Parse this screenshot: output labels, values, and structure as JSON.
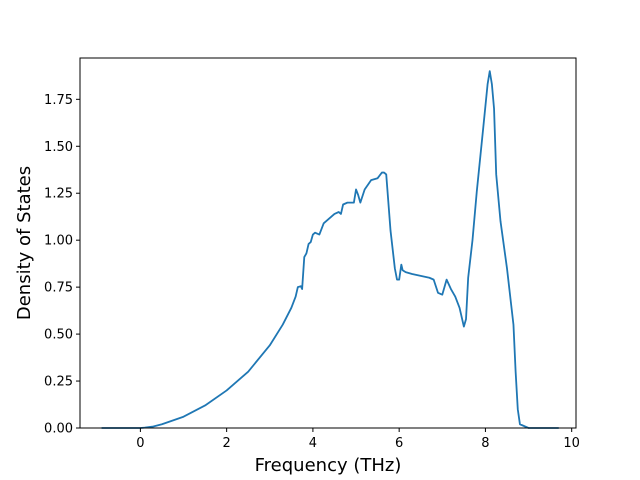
{
  "chart_data": {
    "type": "line",
    "title": "",
    "xlabel": "Frequency (THz)",
    "ylabel": "Density of States",
    "xlim": [
      -1.4,
      10.1
    ],
    "ylim": [
      0,
      1.97
    ],
    "xticks": [
      0,
      2,
      4,
      6,
      8,
      10
    ],
    "xtick_labels": [
      "0",
      "2",
      "4",
      "6",
      "8",
      "10"
    ],
    "yticks": [
      0,
      0.25,
      0.5,
      0.75,
      1.0,
      1.25,
      1.5,
      1.75
    ],
    "ytick_labels": [
      "0.00",
      "0.25",
      "0.50",
      "0.75",
      "1.00",
      "1.25",
      "1.50",
      "1.75"
    ],
    "grid": false,
    "line_color": "#1f77b4",
    "series": [
      {
        "x": [
          -0.9,
          -0.5,
          0,
          0.1,
          0.3,
          0.5,
          1.0,
          1.5,
          2.0,
          2.5,
          3.0,
          3.3,
          3.5,
          3.6,
          3.65,
          3.72,
          3.75,
          3.8,
          3.85,
          3.9,
          3.95,
          4.0,
          4.05,
          4.15,
          4.25,
          4.35,
          4.5,
          4.6,
          4.65,
          4.7,
          4.8,
          4.95,
          5.0,
          5.05,
          5.1,
          5.2,
          5.35,
          5.5,
          5.6,
          5.65,
          5.7,
          5.8,
          5.9,
          5.95,
          6.0,
          6.05,
          6.08,
          6.15,
          6.3,
          6.5,
          6.7,
          6.8,
          6.9,
          7.0,
          7.1,
          7.2,
          7.3,
          7.4,
          7.5,
          7.55,
          7.6,
          7.7,
          7.8,
          7.95,
          8.05,
          8.1,
          8.15,
          8.2,
          8.25,
          8.35,
          8.5,
          8.6,
          8.65,
          8.7,
          8.75,
          8.8,
          9.0,
          9.7
        ],
        "y": [
          0,
          0,
          0,
          0.002,
          0.008,
          0.02,
          0.06,
          0.12,
          0.2,
          0.3,
          0.44,
          0.55,
          0.64,
          0.7,
          0.75,
          0.755,
          0.74,
          0.91,
          0.93,
          0.98,
          0.99,
          1.03,
          1.04,
          1.03,
          1.09,
          1.11,
          1.14,
          1.15,
          1.14,
          1.19,
          1.2,
          1.2,
          1.27,
          1.24,
          1.2,
          1.27,
          1.32,
          1.33,
          1.36,
          1.36,
          1.35,
          1.05,
          0.85,
          0.79,
          0.79,
          0.87,
          0.84,
          0.83,
          0.82,
          0.81,
          0.8,
          0.79,
          0.72,
          0.71,
          0.79,
          0.74,
          0.7,
          0.64,
          0.54,
          0.58,
          0.8,
          1.0,
          1.26,
          1.6,
          1.83,
          1.9,
          1.83,
          1.7,
          1.35,
          1.1,
          0.85,
          0.65,
          0.55,
          0.3,
          0.1,
          0.02,
          0,
          0
        ]
      }
    ]
  }
}
